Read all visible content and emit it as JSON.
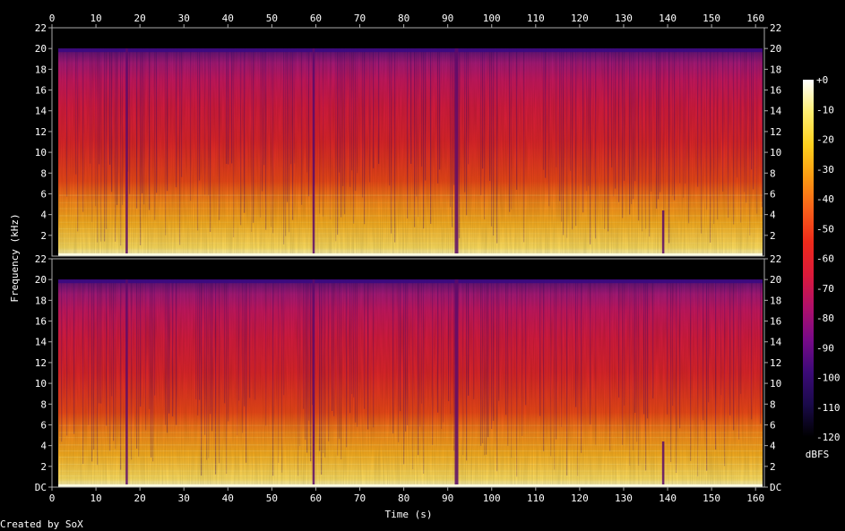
{
  "chart_data": {
    "type": "heatmap",
    "title": "",
    "xlabel": "Time (s)",
    "ylabel": "Frequency (kHz)",
    "xlim": [
      0,
      162
    ],
    "ylim_khz": [
      0,
      22
    ],
    "x_ticks": [
      "0",
      "10",
      "20",
      "30",
      "40",
      "50",
      "60",
      "70",
      "80",
      "90",
      "100",
      "110",
      "120",
      "130",
      "140",
      "150",
      "160"
    ],
    "y_ticks": [
      "DC",
      "2",
      "4",
      "6",
      "8",
      "10",
      "12",
      "14",
      "16",
      "18",
      "20",
      "22"
    ],
    "channels": 2,
    "colorbar": {
      "label": "dBFS",
      "range": [
        -120,
        0
      ],
      "ticks": [
        "+0",
        "-10",
        "-20",
        "-30",
        "-40",
        "-50",
        "-60",
        "-70",
        "-80",
        "-90",
        "-100",
        "-110",
        "-120"
      ]
    },
    "content_cutoff_khz": 20,
    "duration_s": 162,
    "quiet_moments_s": [
      17,
      59.5,
      92,
      139
    ]
  },
  "footer": {
    "credit": "Created by SoX"
  },
  "colors": {
    "background": "#000000",
    "axis": "#aaaaaa",
    "text": "#ffffff",
    "colormap": [
      "#000000",
      "#1a0a4a",
      "#3c0a78",
      "#780a88",
      "#b0106a",
      "#dc1a3a",
      "#ee2a1a",
      "#f8601a",
      "#fb9a12",
      "#fdd01e",
      "#ffee70",
      "#ffffff"
    ]
  }
}
